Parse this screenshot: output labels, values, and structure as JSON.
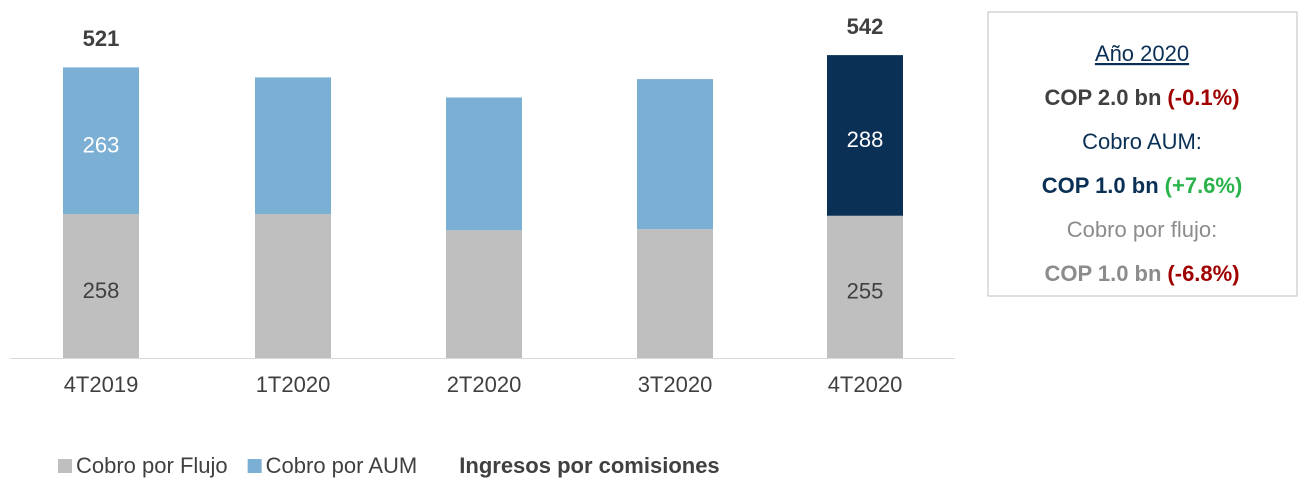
{
  "chart_data": {
    "type": "stacked_bar",
    "subtitle": "Ingresos por comisiones",
    "categories": [
      "4T2019",
      "1T2020",
      "2T2020",
      "3T2020",
      "4T2020"
    ],
    "series": [
      {
        "name": "Cobro por Flujo",
        "color": "#bfbfbf",
        "values": [
          258,
          258,
          229,
          231,
          255
        ],
        "value_labels": [
          "258",
          null,
          null,
          null,
          "255"
        ],
        "label_color": "#404040"
      },
      {
        "name": "Cobro por AUM",
        "color": "#7bafd4",
        "colors": [
          "#7bafd4",
          "#7bafd4",
          "#7bafd4",
          "#7bafd4",
          "#0b3055"
        ],
        "values": [
          263,
          245,
          238,
          269,
          288
        ],
        "value_labels": [
          "263",
          null,
          null,
          null,
          "288"
        ],
        "label_color": "#ffffff"
      }
    ],
    "totals": [
      521,
      null,
      null,
      null,
      542
    ],
    "ylim": [
      0,
      640
    ],
    "sidebox": [
      {
        "parts": [
          {
            "text": "Año 2020",
            "color": "#0b3055",
            "underline": true
          }
        ]
      },
      {
        "parts": [
          {
            "text": "COP 2.0 bn",
            "color": "#404040",
            "bold": true
          },
          {
            "text": "(-0.1%)",
            "color": "#a00000",
            "bold": true
          }
        ]
      },
      {
        "parts": [
          {
            "text": "Cobro AUM:",
            "color": "#0b3055"
          }
        ]
      },
      {
        "parts": [
          {
            "text": "COP 1.0 bn",
            "color": "#0b3055",
            "bold": true
          },
          {
            "text": "(+7.6%)",
            "color": "#2bb34b",
            "bold": true
          }
        ]
      },
      {
        "parts": [
          {
            "text": "Cobro por flujo:",
            "color": "#8c8c8c"
          }
        ]
      },
      {
        "parts": [
          {
            "text": "COP 1.0 bn",
            "color": "#8c8c8c",
            "bold": true
          },
          {
            "text": "(-6.8%)",
            "color": "#a00000",
            "bold": true
          }
        ]
      }
    ]
  }
}
